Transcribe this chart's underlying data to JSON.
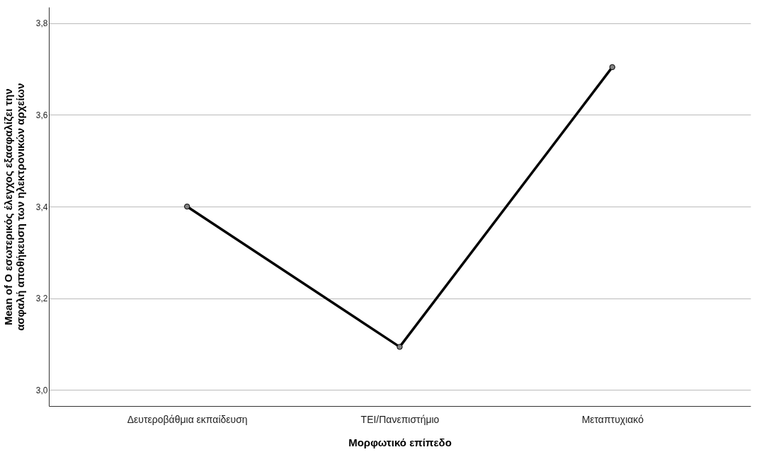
{
  "chart_data": {
    "type": "line",
    "xlabel": "Μορφωτικό επίπεδο",
    "ylabel": "Mean of Ο εσωτερικός έλεγχος εξασφαλίζει την\nασφαλή αποθήκευση των ηλεκτρονικών αρχείων",
    "categories": [
      "Δευτεροβάθμια εκπαίδευση",
      "ΤΕΙ/Πανεπιστήμιο",
      "Μεταπτυχιακό"
    ],
    "series": [
      {
        "color": "#000000",
        "values": [
          3.4,
          3.094,
          3.704
        ]
      }
    ],
    "ylim": [
      2.965,
      3.835
    ],
    "yticks": [
      {
        "value": 3.0,
        "label": "3,0"
      },
      {
        "value": 3.2,
        "label": "3,2"
      },
      {
        "value": 3.4,
        "label": "3,4"
      },
      {
        "value": 3.6,
        "label": "3,6"
      },
      {
        "value": 3.8,
        "label": "3,8"
      }
    ],
    "grid": "y",
    "marker": "circle",
    "line_style": "solid"
  }
}
